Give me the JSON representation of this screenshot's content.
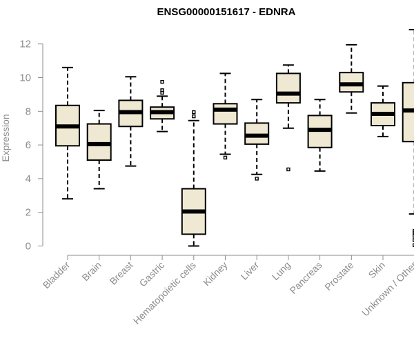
{
  "chart_data": {
    "type": "boxplot",
    "title": "ENSG00000151617 - EDNRA",
    "xlabel": "",
    "ylabel": "Expression",
    "ylim": [
      0,
      12
    ],
    "yticks": [
      0,
      2,
      4,
      6,
      8,
      10,
      12
    ],
    "grid": false,
    "categories": [
      "Bladder",
      "Brain",
      "Breast",
      "Gastric",
      "Hematopoietic cells",
      "Kidney",
      "Liver",
      "Lung",
      "Pancreas",
      "Prostate",
      "Skin",
      "Unknown / Other"
    ],
    "boxes": [
      {
        "name": "Bladder",
        "whisker_low": 2.8,
        "q1": 5.95,
        "median": 7.1,
        "q3": 8.35,
        "whisker_high": 10.6,
        "outliers": []
      },
      {
        "name": "Brain",
        "whisker_low": 3.4,
        "q1": 5.1,
        "median": 6.05,
        "q3": 7.25,
        "whisker_high": 8.05,
        "outliers": []
      },
      {
        "name": "Breast",
        "whisker_low": 4.75,
        "q1": 7.1,
        "median": 7.95,
        "q3": 8.65,
        "whisker_high": 10.05,
        "outliers": []
      },
      {
        "name": "Gastric",
        "whisker_low": 6.8,
        "q1": 7.55,
        "median": 7.95,
        "q3": 8.25,
        "whisker_high": 8.9,
        "outliers": [
          9.1,
          9.25,
          9.75
        ]
      },
      {
        "name": "Hematopoietic cells",
        "whisker_low": 0.0,
        "q1": 0.7,
        "median": 2.05,
        "q3": 3.4,
        "whisker_high": 7.45,
        "outliers": [
          7.7,
          7.95
        ]
      },
      {
        "name": "Kidney",
        "whisker_low": 5.45,
        "q1": 7.25,
        "median": 8.1,
        "q3": 8.45,
        "whisker_high": 10.25,
        "outliers": [
          5.25
        ]
      },
      {
        "name": "Liver",
        "whisker_low": 4.25,
        "q1": 6.05,
        "median": 6.55,
        "q3": 7.3,
        "whisker_high": 8.7,
        "outliers": [
          4.0
        ]
      },
      {
        "name": "Lung",
        "whisker_low": 7.0,
        "q1": 8.5,
        "median": 9.05,
        "q3": 10.25,
        "whisker_high": 10.75,
        "outliers": [
          4.55
        ]
      },
      {
        "name": "Pancreas",
        "whisker_low": 4.45,
        "q1": 5.85,
        "median": 6.9,
        "q3": 7.75,
        "whisker_high": 8.7,
        "outliers": []
      },
      {
        "name": "Prostate",
        "whisker_low": 7.9,
        "q1": 9.15,
        "median": 9.6,
        "q3": 10.3,
        "whisker_high": 11.95,
        "outliers": []
      },
      {
        "name": "Skin",
        "whisker_low": 6.5,
        "q1": 7.15,
        "median": 7.85,
        "q3": 8.5,
        "whisker_high": 9.5,
        "outliers": []
      },
      {
        "name": "Unknown / Other",
        "whisker_low": 1.9,
        "q1": 6.2,
        "median": 8.05,
        "q3": 9.7,
        "whisker_high": 12.85,
        "outliers": [
          0.05,
          0.35,
          0.6,
          0.8,
          0.9
        ]
      }
    ]
  }
}
